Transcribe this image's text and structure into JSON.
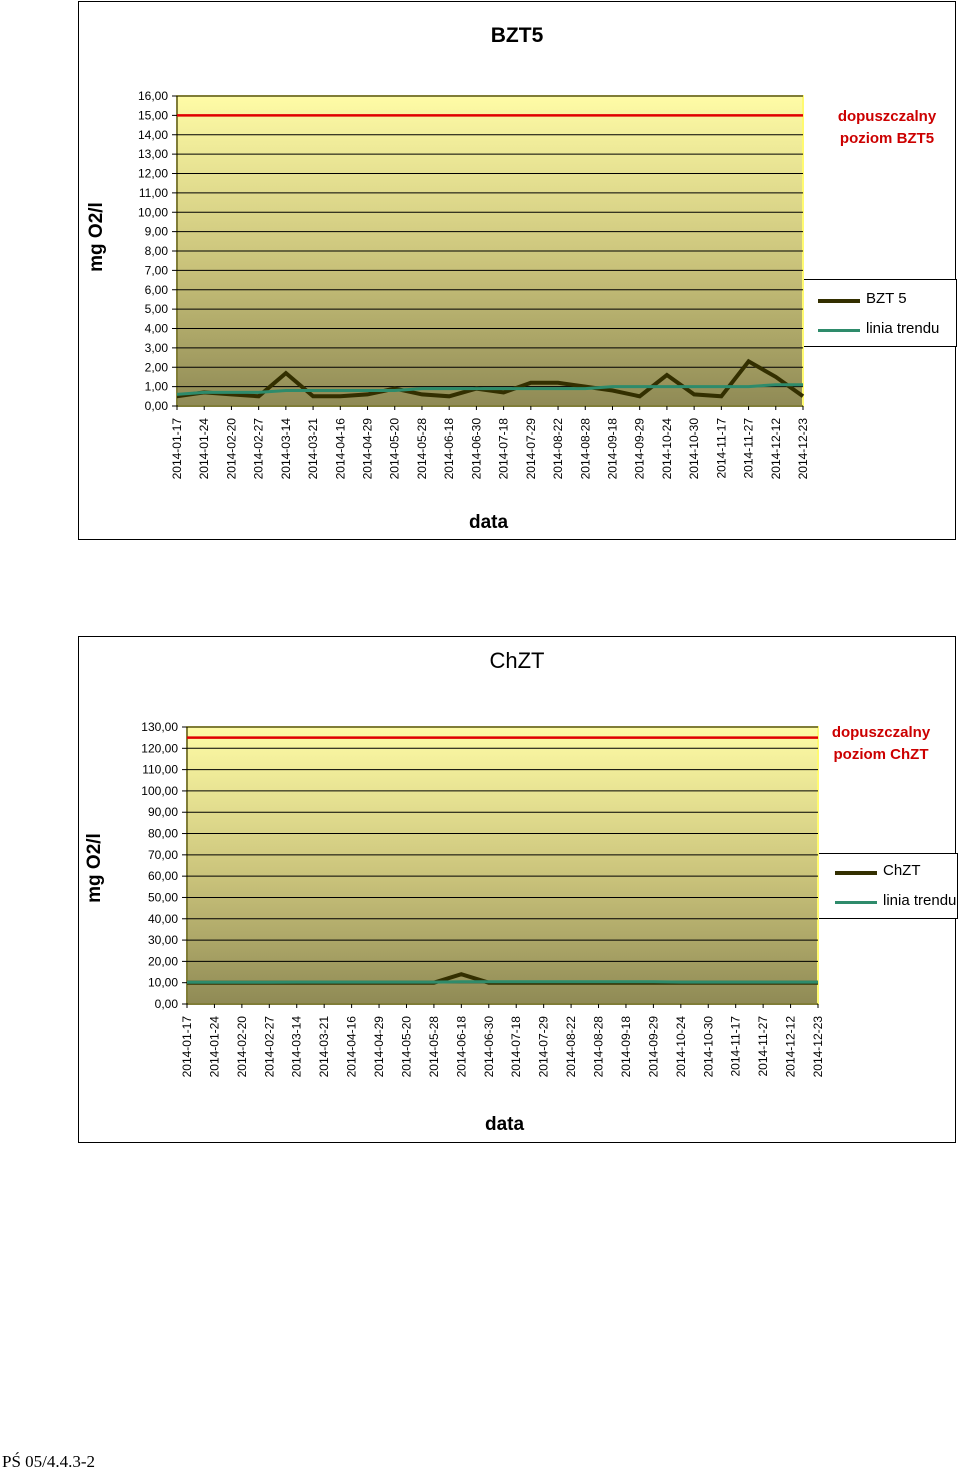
{
  "charts": [
    {
      "title": "BZT5",
      "ylabel": "mg O2/l",
      "xlabel": "data",
      "limit_label": "dopuszczalny poziom BZT5",
      "legend": [
        {
          "label": "BZT 5",
          "color": "#332f00"
        },
        {
          "label": "linia trendu",
          "color": "#2e8b6b"
        }
      ]
    },
    {
      "title": "ChZT",
      "ylabel": "mg O2/l",
      "xlabel": "data",
      "limit_label": "dopuszczalny poziom ChZT",
      "legend": [
        {
          "label": "ChZT",
          "color": "#332f00"
        },
        {
          "label": "linia trendu",
          "color": "#2e8b6b"
        }
      ]
    }
  ],
  "chart_data": [
    {
      "type": "line",
      "title": "BZT5",
      "xlabel": "data",
      "ylabel": "mg O2/l",
      "categories": [
        "2014-01-17",
        "2014-01-24",
        "2014-02-20",
        "2014-02-27",
        "2014-03-14",
        "2014-03-21",
        "2014-04-16",
        "2014-04-29",
        "2014-05-20",
        "2014-05-28",
        "2014-06-18",
        "2014-06-30",
        "2014-07-18",
        "2014-07-29",
        "2014-08-22",
        "2014-08-28",
        "2014-09-18",
        "2014-09-29",
        "2014-10-24",
        "2014-10-30",
        "2014-11-17",
        "2014-11-27",
        "2014-12-12",
        "2014-12-23"
      ],
      "series": [
        {
          "name": "BZT 5",
          "color": "#332f00",
          "values": [
            0.5,
            0.7,
            0.6,
            0.5,
            1.7,
            0.5,
            0.5,
            0.6,
            0.9,
            0.6,
            0.5,
            0.9,
            0.7,
            1.2,
            1.2,
            1.0,
            0.8,
            0.5,
            1.6,
            0.6,
            0.5,
            2.3,
            1.5,
            0.5
          ]
        },
        {
          "name": "linia trendu",
          "color": "#2e8b6b",
          "values": [
            0.6,
            0.7,
            0.7,
            0.7,
            0.8,
            0.8,
            0.8,
            0.8,
            0.8,
            0.9,
            0.9,
            0.9,
            0.9,
            0.9,
            0.9,
            0.9,
            1.0,
            1.0,
            1.0,
            1.0,
            1.0,
            1.0,
            1.1,
            1.1
          ]
        }
      ],
      "limit": {
        "value": 15.0,
        "label": "dopuszczalny poziom BZT5",
        "color": "#e00000"
      },
      "yticks": [
        "0,00",
        "1,00",
        "2,00",
        "3,00",
        "4,00",
        "5,00",
        "6,00",
        "7,00",
        "8,00",
        "9,00",
        "10,00",
        "11,00",
        "12,00",
        "13,00",
        "14,00",
        "15,00",
        "16,00"
      ],
      "ylim": [
        0,
        16
      ],
      "grid": true,
      "legend_position": "right"
    },
    {
      "type": "line",
      "title": "ChZT",
      "xlabel": "data",
      "ylabel": "mg O2/l",
      "categories": [
        "2014-01-17",
        "2014-01-24",
        "2014-02-20",
        "2014-02-27",
        "2014-03-14",
        "2014-03-21",
        "2014-04-16",
        "2014-04-29",
        "2014-05-20",
        "2014-05-28",
        "2014-06-18",
        "2014-06-30",
        "2014-07-18",
        "2014-07-29",
        "2014-08-22",
        "2014-08-28",
        "2014-09-18",
        "2014-09-29",
        "2014-10-24",
        "2014-10-30",
        "2014-11-17",
        "2014-11-27",
        "2014-12-12",
        "2014-12-23"
      ],
      "series": [
        {
          "name": "ChZT",
          "color": "#332f00",
          "values": [
            10,
            10,
            10,
            10,
            10,
            10,
            10,
            10,
            10,
            10,
            14,
            10,
            10,
            10,
            10,
            10,
            10,
            10,
            10,
            10,
            10,
            10,
            10,
            10
          ]
        },
        {
          "name": "linia trendu",
          "color": "#2e8b6b",
          "values": [
            10.2,
            10.2,
            10.2,
            10.2,
            10.3,
            10.3,
            10.3,
            10.3,
            10.3,
            10.3,
            10.4,
            10.4,
            10.4,
            10.4,
            10.4,
            10.4,
            10.4,
            10.4,
            10.3,
            10.3,
            10.3,
            10.3,
            10.3,
            10.3
          ]
        }
      ],
      "limit": {
        "value": 125.0,
        "label": "dopuszczalny poziom ChZT",
        "color": "#e00000"
      },
      "yticks": [
        "0,00",
        "10,00",
        "20,00",
        "30,00",
        "40,00",
        "50,00",
        "60,00",
        "70,00",
        "80,00",
        "90,00",
        "100,00",
        "110,00",
        "120,00",
        "130,00"
      ],
      "ylim": [
        0,
        130
      ],
      "grid": true,
      "legend_position": "right"
    }
  ],
  "footer": "PŚ 05/4.4.3-2"
}
